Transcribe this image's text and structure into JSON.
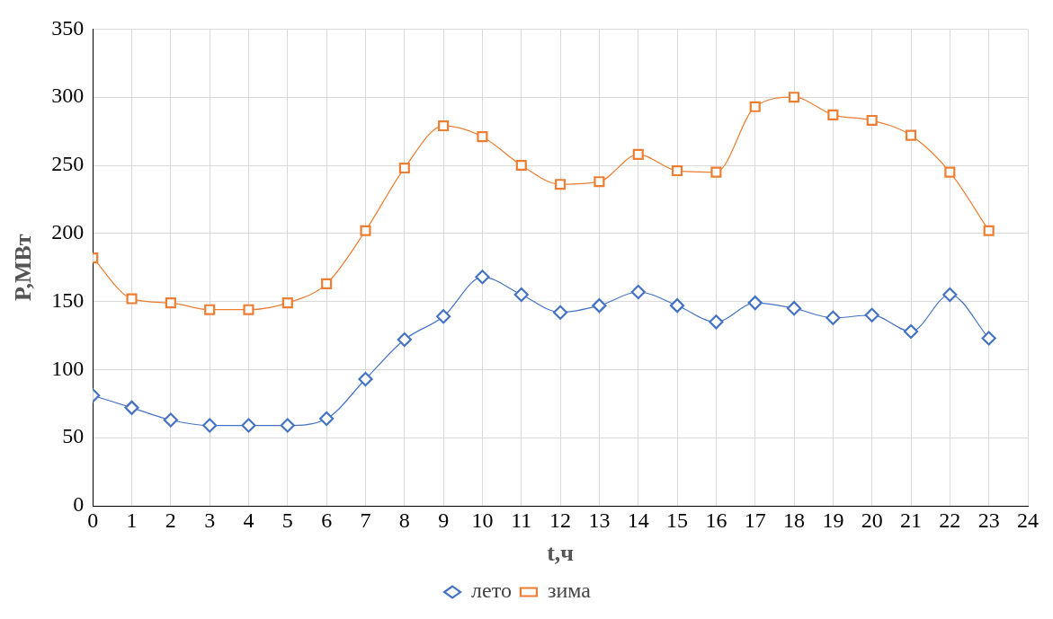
{
  "chart_data": {
    "type": "line",
    "xlabel": "t,ч",
    "ylabel": "P,МВт",
    "x": [
      0,
      1,
      2,
      3,
      4,
      5,
      6,
      7,
      8,
      9,
      10,
      11,
      12,
      13,
      14,
      15,
      16,
      17,
      18,
      19,
      20,
      21,
      22,
      23
    ],
    "series": [
      {
        "name": "лето",
        "color": "#4472c4",
        "marker": "diamond",
        "values": [
          81,
          72,
          63,
          59,
          59,
          59,
          64,
          93,
          122,
          139,
          168,
          155,
          142,
          147,
          157,
          147,
          135,
          149,
          145,
          138,
          140,
          128,
          155,
          123
        ]
      },
      {
        "name": "зима",
        "color": "#ed7d31",
        "marker": "square",
        "values": [
          182,
          152,
          149,
          144,
          144,
          149,
          163,
          202,
          248,
          279,
          271,
          250,
          236,
          238,
          258,
          246,
          245,
          293,
          300,
          287,
          283,
          272,
          245,
          202
        ]
      }
    ],
    "xlim": [
      0,
      24
    ],
    "xticks": [
      0,
      1,
      2,
      3,
      4,
      5,
      6,
      7,
      8,
      9,
      10,
      11,
      12,
      13,
      14,
      15,
      16,
      17,
      18,
      19,
      20,
      21,
      22,
      23,
      24
    ],
    "ylim": [
      0,
      350
    ],
    "yticks": [
      0,
      50,
      100,
      150,
      200,
      250,
      300,
      350
    ],
    "grid": true,
    "legend": "bottom",
    "line_style": "solid"
  }
}
